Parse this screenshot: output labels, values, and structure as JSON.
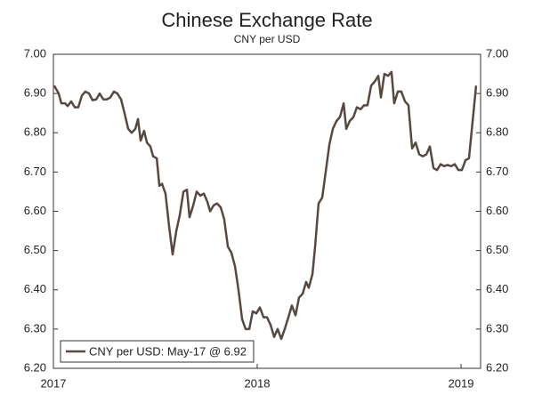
{
  "chart_data": {
    "type": "line",
    "title": "Chinese Exchange Rate",
    "subtitle": "CNY per USD",
    "xlim": [
      2017,
      2019.096
    ],
    "xticks": [
      2017,
      2018,
      2019
    ],
    "ylim": [
      6.2,
      7.0
    ],
    "yticks": [
      {
        "value": 6.2,
        "label": "6.20"
      },
      {
        "value": 6.3,
        "label": "6.30"
      },
      {
        "value": 6.4,
        "label": "6.40"
      },
      {
        "value": 6.5,
        "label": "6.50"
      },
      {
        "value": 6.6,
        "label": "6.60"
      },
      {
        "value": 6.7,
        "label": "6.70"
      },
      {
        "value": 6.8,
        "label": "6.80"
      },
      {
        "value": 6.9,
        "label": "6.90"
      },
      {
        "value": 7.0,
        "label": "7.00"
      }
    ],
    "y2lim": [
      6.2,
      7.0
    ],
    "y2ticks": [
      {
        "value": 6.2,
        "label": "6.20"
      },
      {
        "value": 6.3,
        "label": "6.30"
      },
      {
        "value": 6.4,
        "label": "6.40"
      },
      {
        "value": 6.5,
        "label": "6.50"
      },
      {
        "value": 6.6,
        "label": "6.60"
      },
      {
        "value": 6.7,
        "label": "6.70"
      },
      {
        "value": 6.8,
        "label": "6.80"
      },
      {
        "value": 6.9,
        "label": "6.90"
      },
      {
        "value": 7.0,
        "label": "7.00"
      }
    ],
    "legend": "lower left",
    "x": [
      2017.004,
      2017.026,
      2017.039,
      2017.057,
      2017.07,
      2017.087,
      2017.105,
      2017.122,
      2017.14,
      2017.157,
      2017.175,
      2017.192,
      2017.21,
      2017.227,
      2017.245,
      2017.262,
      2017.279,
      2017.297,
      2017.314,
      2017.332,
      2017.349,
      2017.367,
      2017.384,
      2017.402,
      2017.415,
      2017.428,
      2017.445,
      2017.459,
      2017.476,
      2017.489,
      2017.507,
      2017.52,
      2017.533,
      2017.55,
      2017.568,
      2017.585,
      2017.603,
      2017.62,
      2017.638,
      2017.655,
      2017.668,
      2017.686,
      2017.703,
      2017.721,
      2017.738,
      2017.755,
      2017.769,
      2017.786,
      2017.803,
      2017.821,
      2017.838,
      2017.856,
      2017.873,
      2017.891,
      2017.908,
      2017.926,
      2017.943,
      2017.961,
      2017.978,
      2017.996,
      2018.013,
      2018.031,
      2018.048,
      2018.066,
      2018.083,
      2018.1,
      2018.118,
      2018.135,
      2018.153,
      2018.17,
      2018.188,
      2018.205,
      2018.223,
      2018.24,
      2018.253,
      2018.271,
      2018.284,
      2018.301,
      2018.319,
      2018.336,
      2018.354,
      2018.371,
      2018.389,
      2018.406,
      2018.424,
      2018.437,
      2018.454,
      2018.472,
      2018.489,
      2018.507,
      2018.524,
      2018.541,
      2018.559,
      2018.576,
      2018.594,
      2018.607,
      2018.624,
      2018.642,
      2018.659,
      2018.672,
      2018.69,
      2018.707,
      2018.725,
      2018.742,
      2018.76,
      2018.777,
      2018.795,
      2018.812,
      2018.83,
      2018.847,
      2018.865,
      2018.882,
      2018.9,
      2018.917,
      2018.934,
      2018.952,
      2018.969,
      2018.987,
      2019.004,
      2019.022,
      2019.039,
      2019.057,
      2019.074
    ],
    "series": [
      {
        "name": "CNY per USD: May-17 @ 6.92",
        "color": "#574840",
        "values": [
          6.92,
          6.9,
          6.875,
          6.875,
          6.868,
          6.88,
          6.865,
          6.865,
          6.895,
          6.905,
          6.9,
          6.883,
          6.885,
          6.9,
          6.885,
          6.885,
          6.89,
          6.905,
          6.9,
          6.885,
          6.85,
          6.81,
          6.8,
          6.81,
          6.835,
          6.78,
          6.805,
          6.775,
          6.765,
          6.74,
          6.735,
          6.665,
          6.67,
          6.645,
          6.56,
          6.49,
          6.55,
          6.59,
          6.65,
          6.655,
          6.585,
          6.615,
          6.65,
          6.64,
          6.645,
          6.625,
          6.6,
          6.615,
          6.62,
          6.61,
          6.58,
          6.51,
          6.495,
          6.46,
          6.4,
          6.325,
          6.3,
          6.3,
          6.345,
          6.34,
          6.355,
          6.33,
          6.33,
          6.31,
          6.28,
          6.3,
          6.275,
          6.3,
          6.33,
          6.36,
          6.335,
          6.38,
          6.39,
          6.42,
          6.405,
          6.44,
          6.51,
          6.62,
          6.635,
          6.7,
          6.77,
          6.81,
          6.83,
          6.84,
          6.875,
          6.81,
          6.83,
          6.84,
          6.865,
          6.86,
          6.87,
          6.87,
          6.92,
          6.93,
          6.945,
          6.89,
          6.95,
          6.945,
          6.955,
          6.875,
          6.905,
          6.905,
          6.88,
          6.87,
          6.76,
          6.775,
          6.745,
          6.74,
          6.745,
          6.765,
          6.71,
          6.705,
          6.72,
          6.715,
          6.718,
          6.715,
          6.72,
          6.705,
          6.705,
          6.73,
          6.735,
          6.83,
          6.92
        ]
      }
    ]
  }
}
